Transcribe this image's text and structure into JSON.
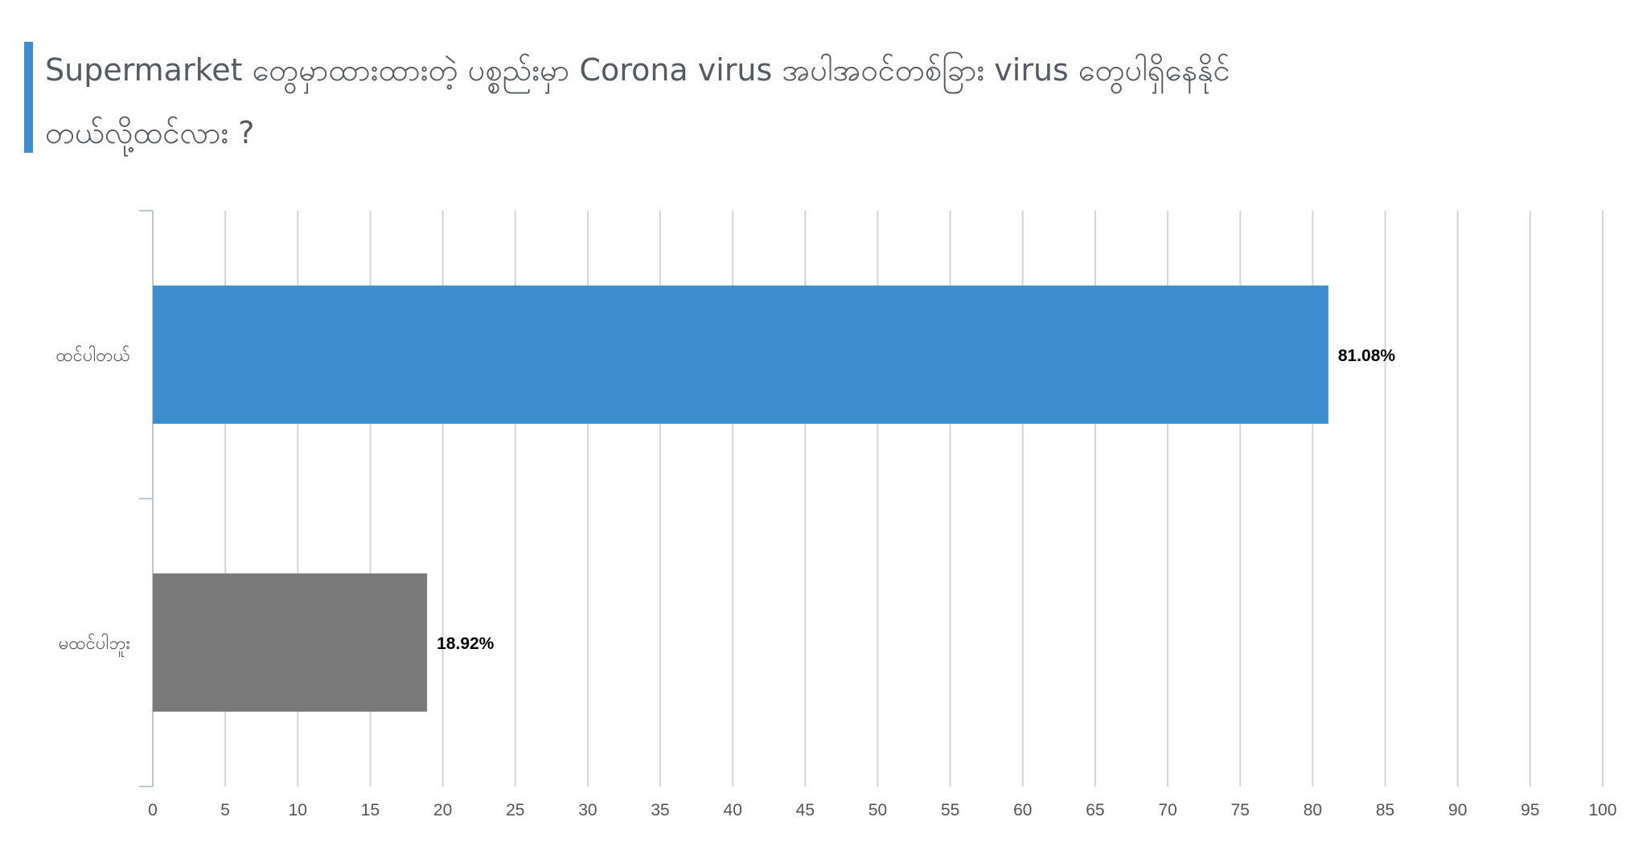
{
  "chart_data": {
    "type": "bar",
    "orientation": "horizontal",
    "title": "Supermarket တွေမှာထားထားတဲ့ ပစ္စည်းမှာ Corona virus အပါအဝင်တစ်ခြား virus တွေပါရှိနေနိုင်တယ်လို့ထင်လား ?",
    "categories": [
      "ထင်ပါတယ်",
      "မထင်ပါဘူး"
    ],
    "values": [
      81.08,
      18.92
    ],
    "data_labels": [
      "81.08%",
      "18.92%"
    ],
    "colors": [
      "#3d8ecd",
      "#7a7a7a"
    ],
    "xlim": [
      0,
      100
    ],
    "x_ticks": [
      0,
      5,
      10,
      15,
      20,
      25,
      30,
      35,
      40,
      45,
      50,
      55,
      60,
      65,
      70,
      75,
      80,
      85,
      90,
      95,
      100
    ],
    "xlabel": "",
    "ylabel": "",
    "grid": true,
    "legend": "none"
  },
  "theme": {
    "accent": "#3d8ecd",
    "title_color": "#555a63",
    "grid_color": "#d5d5d5",
    "axis_color": "#b9c8d6"
  }
}
